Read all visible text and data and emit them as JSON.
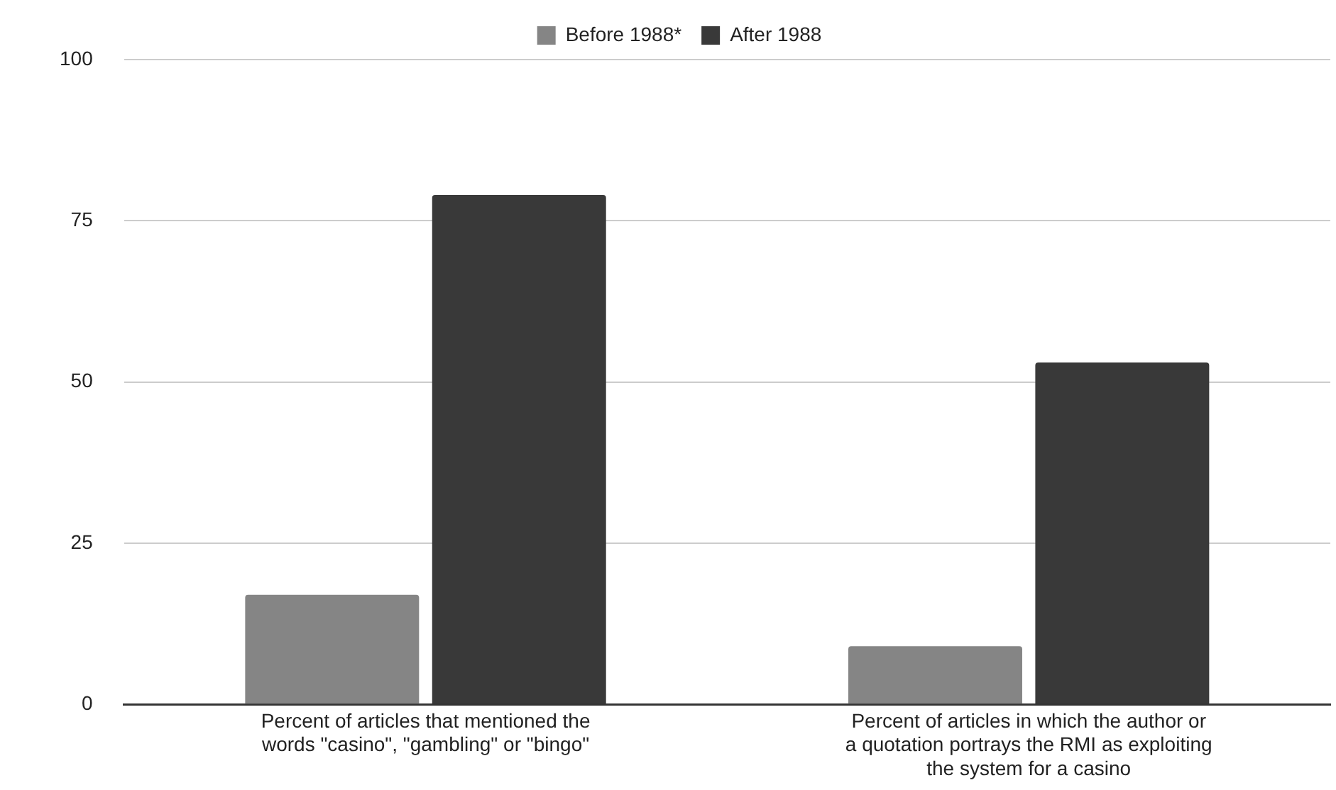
{
  "chart_data": {
    "type": "bar",
    "categories": [
      "Percent of articles that mentioned the\nwords \"casino\", \"gambling\" or \"bingo\"",
      "Percent of articles in which the author or\na quotation portrays the RMI as exploiting\nthe system for a casino"
    ],
    "series": [
      {
        "name": "Before 1988*",
        "color": "#858585",
        "values": [
          17,
          9
        ]
      },
      {
        "name": "After 1988",
        "color": "#393939",
        "values": [
          79,
          53
        ]
      }
    ],
    "ylim": [
      0,
      100
    ],
    "yticks": [
      0,
      25,
      50,
      75,
      100
    ],
    "grid": "y",
    "legend": "top"
  }
}
